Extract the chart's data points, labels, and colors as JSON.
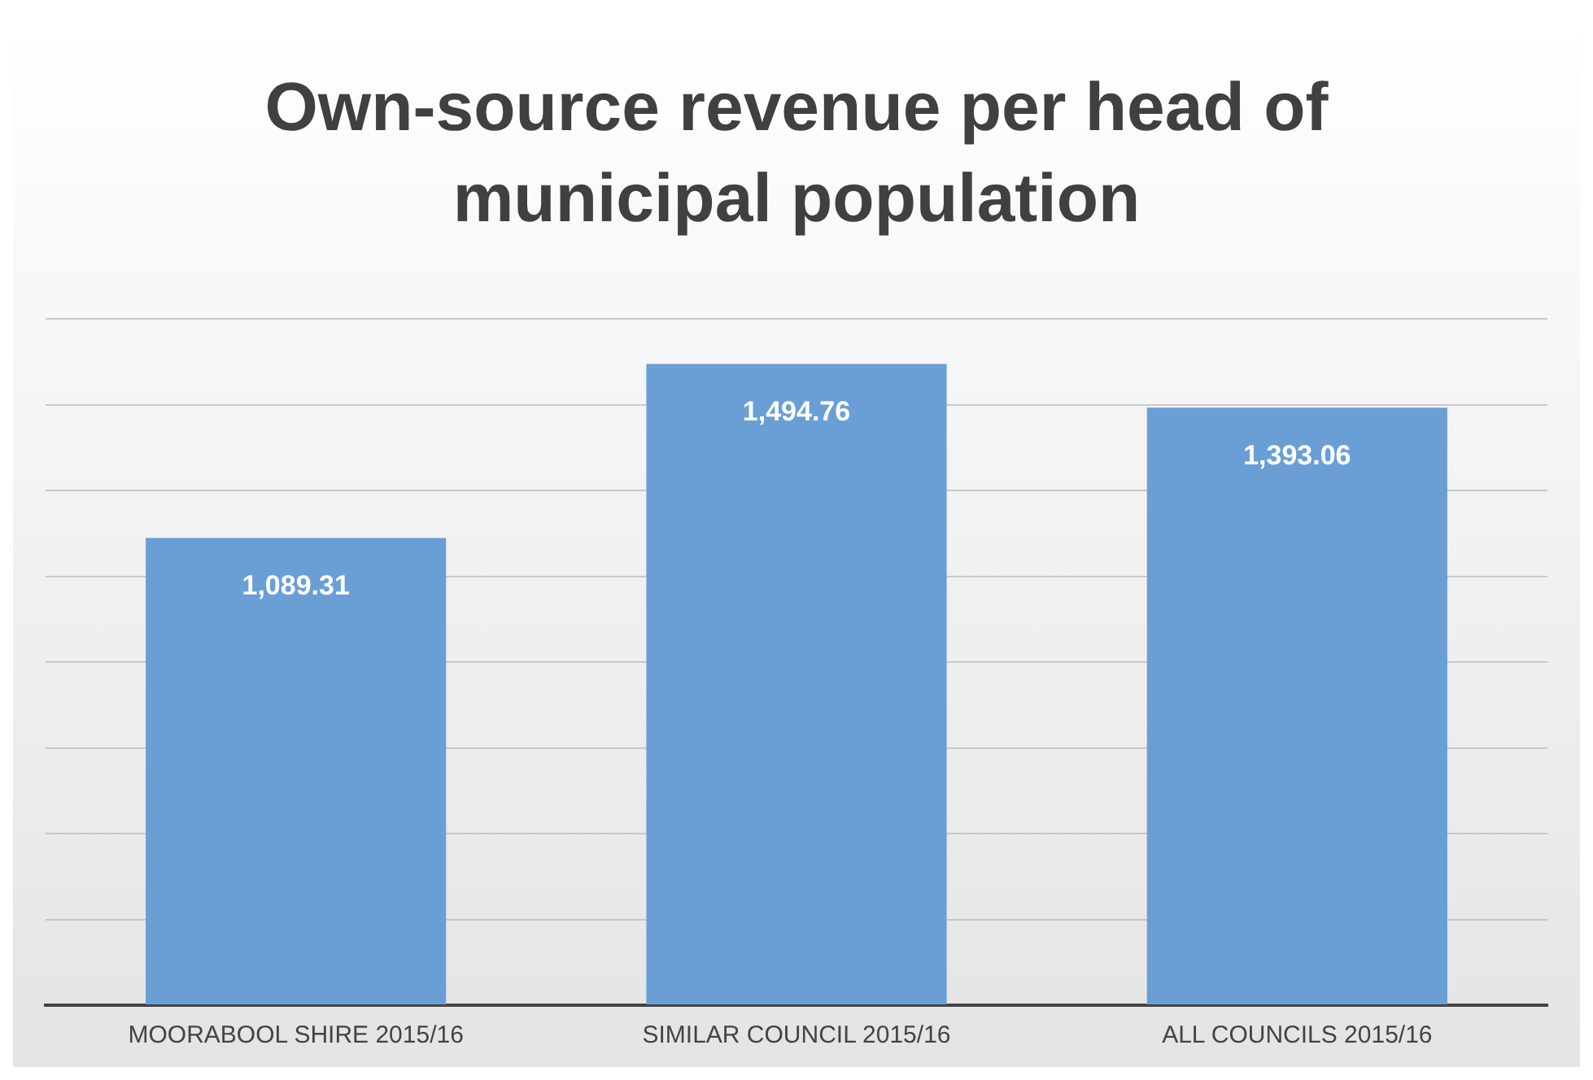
{
  "chart_data": {
    "type": "bar",
    "title": "Own-source revenue per head of municipal population",
    "categories": [
      "MOORABOOL SHIRE 2015/16",
      "SIMILAR COUNCIL 2015/16",
      "ALL COUNCILS 2015/16"
    ],
    "values": [
      1089.31,
      1494.76,
      1393.06
    ],
    "color": "#6a9fd6",
    "value_labels": [
      "1,089.31",
      "1,494.76",
      "1,393.06"
    ],
    "ylim": [
      0,
      1600
    ],
    "yticks": [
      {
        "value": 0,
        "label": null
      },
      {
        "value": 200,
        "label": null
      },
      {
        "value": 400,
        "label": null
      },
      {
        "value": 600,
        "label": null
      },
      {
        "value": 800,
        "label": null
      },
      {
        "value": 1000,
        "label": null
      },
      {
        "value": 1200,
        "label": null
      },
      {
        "value": 1400,
        "label": null
      },
      {
        "value": 1600,
        "label": null
      }
    ],
    "tick_labels": "x",
    "grid": "y",
    "legend": false
  }
}
